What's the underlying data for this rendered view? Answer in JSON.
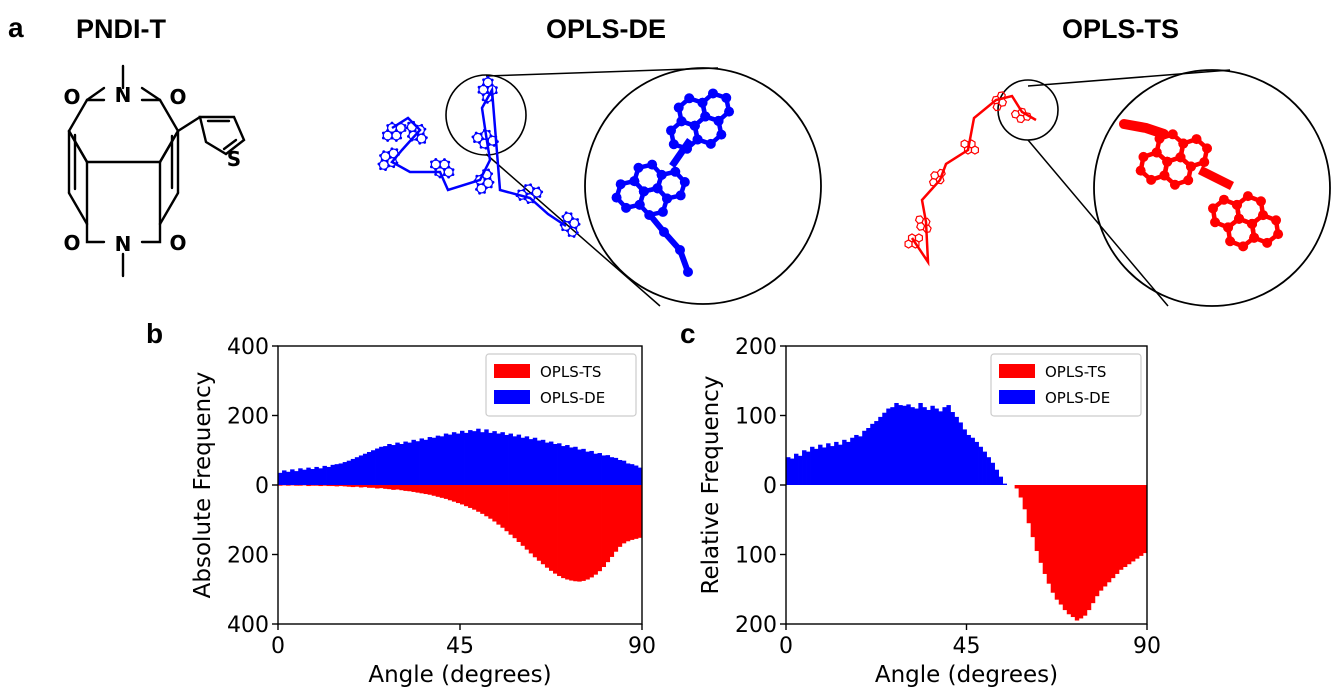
{
  "panels": {
    "a": "a",
    "b": "b",
    "c": "c"
  },
  "structure": {
    "title": "PNDI-T",
    "atoms": [
      "O",
      "N",
      "O",
      "S",
      "O",
      "N",
      "O"
    ]
  },
  "simulations": [
    {
      "title": "OPLS-DE",
      "color": "#0000ff"
    },
    {
      "title": "OPLS-TS",
      "color": "#ff0000"
    }
  ],
  "chart_data": [
    {
      "panel": "b",
      "type": "bar",
      "xlabel": "Angle (degrees)",
      "ylabel": "Absolute Frequency",
      "xlim": [
        0,
        90
      ],
      "xticks": [
        "0",
        "45",
        "90"
      ],
      "ylim": [
        -400,
        400
      ],
      "yticks": [
        "400",
        "200",
        "0",
        "200",
        "400"
      ],
      "ytick_values": [
        400,
        200,
        0,
        -200,
        -400
      ],
      "bin_width_degrees": 1,
      "legend_position": "top-right",
      "series": [
        {
          "name": "OPLS-TS",
          "color": "#ff0000",
          "direction": "down",
          "values": [
            2,
            1,
            2,
            1,
            2,
            2,
            1,
            3,
            2,
            2,
            3,
            2,
            3,
            3,
            4,
            3,
            4,
            5,
            6,
            5,
            7,
            6,
            8,
            8,
            10,
            9,
            11,
            12,
            14,
            13,
            15,
            17,
            18,
            20,
            22,
            24,
            26,
            28,
            31,
            34,
            37,
            40,
            44,
            48,
            52,
            56,
            61,
            66,
            71,
            77,
            83,
            90,
            97,
            105,
            114,
            123,
            133,
            143,
            153,
            164,
            175,
            186,
            197,
            208,
            218,
            228,
            238,
            247,
            255,
            262,
            268,
            272,
            275,
            277,
            278,
            276,
            272,
            266,
            258,
            248,
            236,
            222,
            207,
            192,
            178,
            168,
            162,
            158,
            155,
            152
          ]
        },
        {
          "name": "OPLS-DE",
          "color": "#0000ff",
          "direction": "up",
          "values": [
            35,
            42,
            38,
            45,
            40,
            48,
            44,
            50,
            46,
            52,
            48,
            55,
            52,
            58,
            60,
            62,
            66,
            70,
            75,
            80,
            85,
            90,
            95,
            100,
            105,
            110,
            112,
            118,
            115,
            122,
            118,
            125,
            122,
            130,
            126,
            134,
            130,
            138,
            136,
            142,
            140,
            148,
            145,
            152,
            148,
            156,
            150,
            158,
            155,
            162,
            152,
            160,
            150,
            155,
            148,
            152,
            144,
            148,
            140,
            145,
            136,
            140,
            132,
            136,
            128,
            130,
            122,
            125,
            118,
            120,
            112,
            115,
            108,
            110,
            102,
            104,
            96,
            98,
            90,
            92,
            85,
            86,
            80,
            78,
            72,
            70,
            62,
            60,
            56,
            50
          ]
        }
      ]
    },
    {
      "panel": "c",
      "type": "bar",
      "xlabel": "Angle (degrees)",
      "ylabel": "Relative Frequency",
      "xlim": [
        0,
        90
      ],
      "xticks": [
        "0",
        "45",
        "90"
      ],
      "ylim": [
        -200,
        200
      ],
      "yticks": [
        "200",
        "100",
        "0",
        "100",
        "200"
      ],
      "ytick_values": [
        200,
        100,
        0,
        -100,
        -200
      ],
      "bin_width_degrees": 1,
      "legend_position": "top-right",
      "series": [
        {
          "name": "OPLS-TS",
          "color": "#ff0000",
          "direction": "down",
          "values": [
            0,
            0,
            0,
            0,
            0,
            0,
            0,
            0,
            0,
            0,
            0,
            0,
            0,
            0,
            0,
            0,
            0,
            0,
            0,
            0,
            0,
            0,
            0,
            0,
            0,
            0,
            0,
            0,
            0,
            0,
            0,
            0,
            0,
            0,
            0,
            0,
            0,
            0,
            0,
            0,
            0,
            0,
            0,
            0,
            0,
            0,
            0,
            0,
            0,
            0,
            0,
            0,
            0,
            0,
            0,
            0,
            0,
            5,
            18,
            35,
            55,
            75,
            95,
            112,
            128,
            142,
            155,
            165,
            172,
            180,
            186,
            190,
            195,
            192,
            188,
            180,
            170,
            160,
            152,
            146,
            140,
            134,
            128,
            122,
            118,
            114,
            110,
            106,
            102,
            98
          ]
        },
        {
          "name": "OPLS-DE",
          "color": "#0000ff",
          "direction": "up",
          "values": [
            40,
            38,
            45,
            42,
            50,
            48,
            55,
            52,
            58,
            54,
            60,
            56,
            62,
            58,
            65,
            62,
            68,
            72,
            70,
            78,
            82,
            88,
            92,
            98,
            104,
            110,
            112,
            118,
            115,
            114,
            116,
            112,
            110,
            118,
            112,
            108,
            114,
            110,
            106,
            112,
            115,
            105,
            98,
            90,
            80,
            72,
            68,
            62,
            55,
            48,
            40,
            32,
            22,
            12,
            2,
            0,
            0,
            0,
            0,
            0,
            0,
            0,
            0,
            0,
            0,
            0,
            0,
            0,
            0,
            0,
            0,
            0,
            0,
            0,
            0,
            0,
            0,
            0,
            0,
            0,
            0,
            0,
            0,
            0,
            0,
            0,
            0,
            0,
            0,
            0
          ]
        }
      ]
    }
  ]
}
